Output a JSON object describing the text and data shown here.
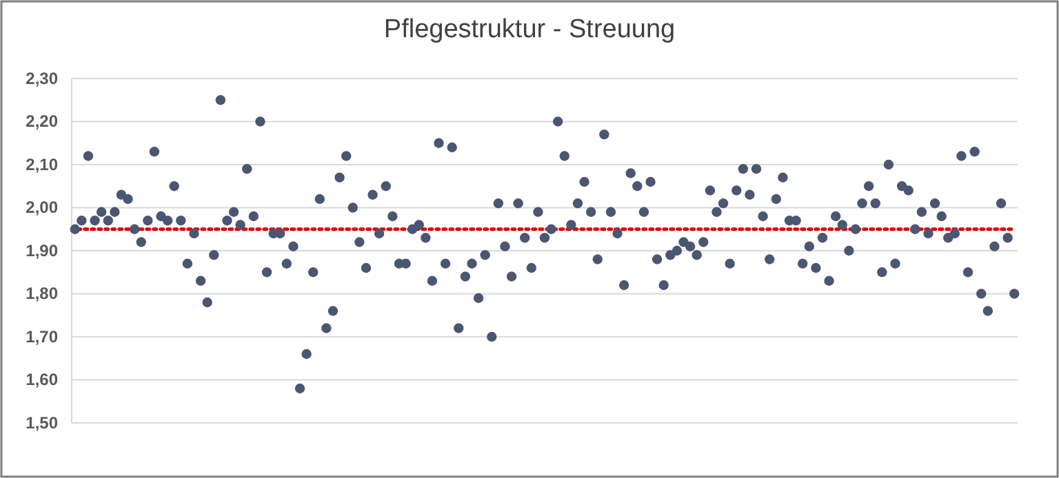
{
  "chart_data": {
    "type": "scatter",
    "title": "Pflegestruktur  - Streuung",
    "values": [
      1.95,
      1.97,
      2.12,
      1.97,
      1.99,
      1.97,
      1.99,
      2.03,
      2.02,
      1.95,
      1.92,
      1.97,
      2.13,
      1.98,
      1.97,
      2.05,
      1.97,
      1.87,
      1.94,
      1.83,
      1.78,
      1.89,
      2.25,
      1.97,
      1.99,
      1.96,
      2.09,
      1.98,
      2.2,
      1.85,
      1.94,
      1.94,
      1.87,
      1.91,
      1.58,
      1.66,
      1.85,
      2.02,
      1.72,
      1.76,
      2.07,
      2.12,
      2.0,
      1.92,
      1.86,
      2.03,
      1.94,
      2.05,
      1.98,
      1.87,
      1.87,
      1.95,
      1.96,
      1.93,
      1.83,
      2.15,
      1.87,
      2.14,
      1.72,
      1.84,
      1.87,
      1.79,
      1.89,
      1.7,
      2.01,
      1.91,
      1.84,
      2.01,
      1.93,
      1.86,
      1.99,
      1.93,
      1.95,
      2.2,
      2.12,
      1.96,
      2.01,
      2.06,
      1.99,
      1.88,
      2.17,
      1.99,
      1.94,
      1.82,
      2.08,
      2.05,
      1.99,
      2.06,
      1.88,
      1.82,
      1.89,
      1.9,
      1.92,
      1.91,
      1.89,
      1.92,
      2.04,
      1.99,
      2.01,
      1.87,
      2.04,
      2.09,
      2.03,
      2.09,
      1.98,
      1.88,
      2.02,
      2.07,
      1.97,
      1.97,
      1.87,
      1.91,
      1.86,
      1.93,
      1.83,
      1.98,
      1.96,
      1.9,
      1.95,
      2.01,
      2.05,
      2.01,
      1.85,
      2.1,
      1.87,
      2.05,
      2.04,
      1.95,
      1.99,
      1.94,
      2.01,
      1.98,
      1.93,
      1.94,
      2.12,
      1.85,
      2.13,
      1.8,
      1.76,
      1.91,
      2.01,
      1.93,
      1.8
    ],
    "categories": [
      null,
      null,
      null,
      null,
      null,
      null,
      null,
      null,
      null,
      null,
      null,
      null,
      null,
      null,
      null,
      null,
      null,
      null,
      null,
      null,
      null,
      null,
      null,
      null,
      null,
      null,
      null,
      null,
      null,
      null,
      null,
      null,
      null,
      null,
      null,
      null,
      null,
      null,
      null,
      null,
      null,
      null,
      null,
      null,
      null,
      null,
      null,
      null,
      null,
      null,
      null,
      null,
      null,
      null,
      null,
      null,
      null,
      null,
      null,
      null,
      null,
      null,
      null,
      null,
      null,
      null,
      null,
      null,
      null,
      null,
      null,
      null,
      null,
      null,
      null,
      null,
      null,
      null,
      null,
      null,
      null,
      null,
      null,
      null,
      null,
      null,
      null,
      null,
      null,
      null,
      null,
      null,
      null,
      null,
      null,
      null,
      null,
      null,
      null,
      null,
      null,
      null,
      null,
      null,
      null,
      null,
      null,
      null,
      null,
      null,
      null,
      null,
      null,
      null,
      null,
      null,
      null,
      null,
      null,
      null,
      null,
      null,
      null,
      null,
      null,
      null,
      null,
      null,
      null,
      null,
      null,
      null,
      null,
      null,
      null,
      null,
      null,
      null,
      null,
      null,
      null,
      null,
      null
    ],
    "color": "#4b5672",
    "marker": "circle",
    "ylim": [
      1.5,
      2.3
    ],
    "yticks": [
      {
        "value": 1.5,
        "label": "1,50"
      },
      {
        "value": 1.6,
        "label": "1,60"
      },
      {
        "value": 1.7,
        "label": "1,70"
      },
      {
        "value": 1.8,
        "label": "1,80"
      },
      {
        "value": 1.9,
        "label": "1,90"
      },
      {
        "value": 2.0,
        "label": "2,00"
      },
      {
        "value": 2.1,
        "label": "2,10"
      },
      {
        "value": 2.2,
        "label": "2,20"
      },
      {
        "value": 2.3,
        "label": "2,30"
      }
    ],
    "grid": "y",
    "ref_lines": [
      {
        "axis": "y",
        "value": 1.95,
        "color": "#e00000",
        "line_style": "dotted"
      }
    ]
  }
}
